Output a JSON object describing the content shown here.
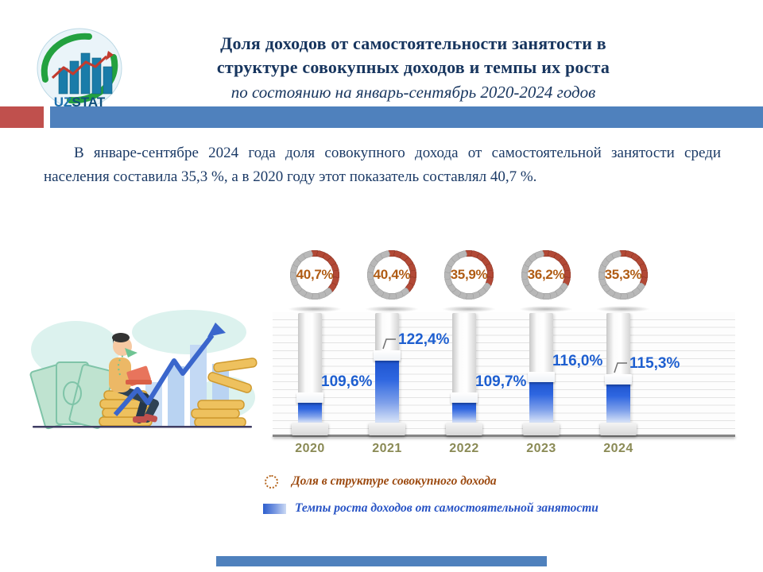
{
  "header": {
    "logo_uz": "UZ",
    "logo_stat": "STAT",
    "title_line1": "Доля доходов от самостоятельности занятости в",
    "title_line2": "структуре совокупных доходов и темпы их роста",
    "subtitle": "по состоянию на январь-сентябрь 2020-2024 годов"
  },
  "intro_paragraph": "В январе-сентябре 2024 года доля совокупного дохода от самостоятельной занятости среди населения составила 35,3 %, а в 2020 году этот показатель составлял 40,7 %.",
  "chart_data": {
    "type": "bar",
    "categories": [
      "2020",
      "2021",
      "2022",
      "2023",
      "2024"
    ],
    "series": [
      {
        "name": "Доля в структуре совокупного дохода",
        "unit": "%",
        "style": "dotted-ring-badge",
        "values": [
          40.7,
          40.4,
          35.9,
          36.2,
          35.3
        ],
        "labels": [
          "40,7%",
          "40,4%",
          "35,9%",
          "36,2%",
          "35,3%"
        ]
      },
      {
        "name": "Темпы роста доходов от самостоятельной занятости",
        "unit": "%",
        "style": "gradient-bar",
        "values": [
          109.6,
          122.4,
          109.7,
          116.0,
          115.3
        ],
        "labels": [
          "109,6%",
          "122,4%",
          "109,7%",
          "116,0%",
          "115,3%"
        ]
      }
    ],
    "bar_baseline": 100,
    "leader_lines": [
      false,
      true,
      false,
      false,
      true
    ],
    "grid": true,
    "legend_position": "bottom-left"
  },
  "legend": {
    "items": [
      {
        "icon": "dotted-circle-icon",
        "label": "Доля в структуре совокупного дохода",
        "color": "#9c4a10"
      },
      {
        "icon": "gradient-bar-icon",
        "label": "Темпы роста доходов от самостоятельной занятости",
        "color": "#2753c5"
      }
    ]
  },
  "colors": {
    "accent_red": "#c0504d",
    "accent_blue": "#4f81bd",
    "title_navy": "#17355e",
    "ring_red": "#b24936",
    "ring_gray": "#b8b8b8",
    "ring_text": "#b05c14",
    "value_blue": "#1e5fd0",
    "year_olive": "#8a8a55",
    "bar_blue": "#2b62d6",
    "footer_blue": "#4f81bd"
  }
}
